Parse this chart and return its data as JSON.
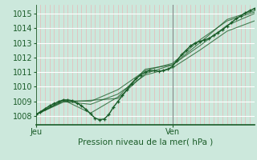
{
  "bg_color": "#cce8dc",
  "plot_bg_color": "#cce8dc",
  "grid_h_color": "#ffffff",
  "grid_v_color": "#e8b8b8",
  "line_color": "#1a5c28",
  "vline_color": "#888888",
  "xlabel": "Pression niveau de la mer( hPa )",
  "xlabel_color": "#1a5c28",
  "tick_color": "#1a5c28",
  "ylabel_ticks": [
    1008,
    1009,
    1010,
    1011,
    1012,
    1013,
    1014,
    1015
  ],
  "xlim": [
    0,
    48
  ],
  "ylim": [
    1007.4,
    1015.6
  ],
  "x_jeu": 0,
  "x_ven": 30,
  "n_vgrid": 48,
  "main_series_x": [
    0,
    1,
    2,
    3,
    4,
    5,
    6,
    7,
    8,
    9,
    10,
    11,
    12,
    13,
    14,
    15,
    16,
    17,
    18,
    19,
    20,
    21,
    22,
    23,
    24,
    25,
    26,
    27,
    28,
    29,
    30,
    31,
    32,
    33,
    34,
    35,
    36,
    37,
    38,
    39,
    40,
    41,
    42,
    43,
    44,
    45,
    46,
    47,
    48
  ],
  "main_series_y": [
    1008.1,
    1008.3,
    1008.5,
    1008.7,
    1008.85,
    1009.0,
    1009.1,
    1009.1,
    1009.05,
    1008.9,
    1008.7,
    1008.45,
    1008.15,
    1007.85,
    1007.75,
    1007.8,
    1008.1,
    1008.6,
    1009.0,
    1009.4,
    1009.8,
    1010.2,
    1010.55,
    1010.8,
    1011.0,
    1011.1,
    1011.1,
    1011.05,
    1011.1,
    1011.2,
    1011.4,
    1011.8,
    1012.2,
    1012.5,
    1012.8,
    1013.0,
    1013.1,
    1013.2,
    1013.3,
    1013.5,
    1013.7,
    1013.9,
    1014.15,
    1014.4,
    1014.65,
    1014.85,
    1015.05,
    1015.2,
    1015.35
  ],
  "ensemble1_x": [
    0,
    6,
    12,
    18,
    24,
    30,
    36,
    42,
    48
  ],
  "ensemble1_y": [
    1008.1,
    1009.1,
    1008.2,
    1009.3,
    1011.2,
    1011.5,
    1012.8,
    1014.2,
    1015.0
  ],
  "ensemble2_x": [
    0,
    6,
    12,
    18,
    24,
    30,
    36,
    42,
    48
  ],
  "ensemble2_y": [
    1008.1,
    1009.05,
    1009.0,
    1009.8,
    1011.1,
    1011.6,
    1013.2,
    1014.5,
    1015.1
  ],
  "ensemble3_x": [
    0,
    6,
    12,
    18,
    24,
    30,
    36,
    42,
    48
  ],
  "ensemble3_y": [
    1008.1,
    1009.0,
    1008.8,
    1009.5,
    1010.8,
    1011.3,
    1012.5,
    1013.8,
    1014.5
  ],
  "ensemble4_x": [
    0,
    6,
    18,
    24,
    30,
    36,
    42,
    48
  ],
  "ensemble4_y": [
    1008.1,
    1008.95,
    1009.2,
    1010.9,
    1011.5,
    1013.0,
    1014.6,
    1015.2
  ]
}
